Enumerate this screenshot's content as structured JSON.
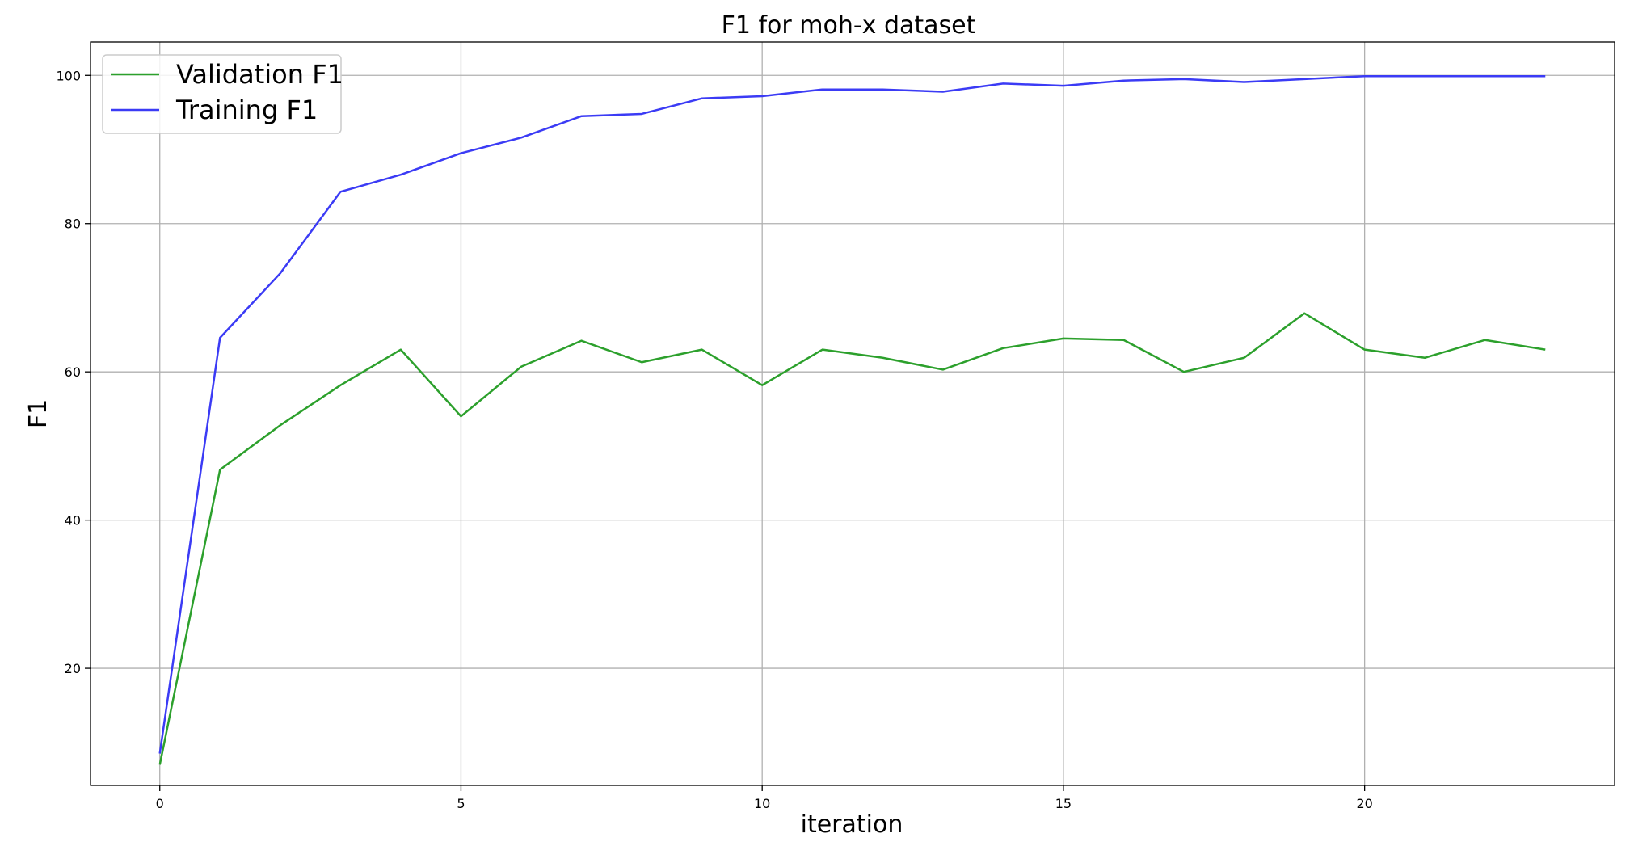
{
  "chart_data": {
    "type": "line",
    "title": "F1 for moh-x dataset",
    "xlabel": "iteration",
    "ylabel": "F1",
    "xlim": [
      -1.15,
      24.15
    ],
    "ylim": [
      4.2,
      104.5
    ],
    "xticks": [
      0,
      5,
      10,
      15,
      20
    ],
    "yticks": [
      20,
      40,
      60,
      80,
      100
    ],
    "grid": true,
    "legend_position": "top-left",
    "x": [
      0,
      1,
      2,
      3,
      4,
      5,
      6,
      7,
      8,
      9,
      10,
      11,
      12,
      13,
      14,
      15,
      16,
      17,
      18,
      19,
      20,
      21,
      22,
      23
    ],
    "series": [
      {
        "name": "Validation F1",
        "color": "#2ca02c",
        "values": [
          7.0,
          46.8,
          52.8,
          58.2,
          63.0,
          54.0,
          60.7,
          64.2,
          61.3,
          63.0,
          58.2,
          63.0,
          61.9,
          60.3,
          63.2,
          64.5,
          64.3,
          60.0,
          61.9,
          67.9,
          63.0,
          61.9,
          64.3,
          63.0
        ]
      },
      {
        "name": "Training F1",
        "color": "#3b3bf5",
        "values": [
          8.5,
          64.6,
          73.3,
          84.3,
          86.6,
          89.5,
          91.6,
          94.5,
          94.8,
          96.9,
          97.2,
          98.1,
          98.1,
          97.8,
          98.9,
          98.6,
          99.3,
          99.5,
          99.1,
          99.5,
          99.9,
          99.9,
          99.9,
          99.9
        ]
      }
    ]
  }
}
